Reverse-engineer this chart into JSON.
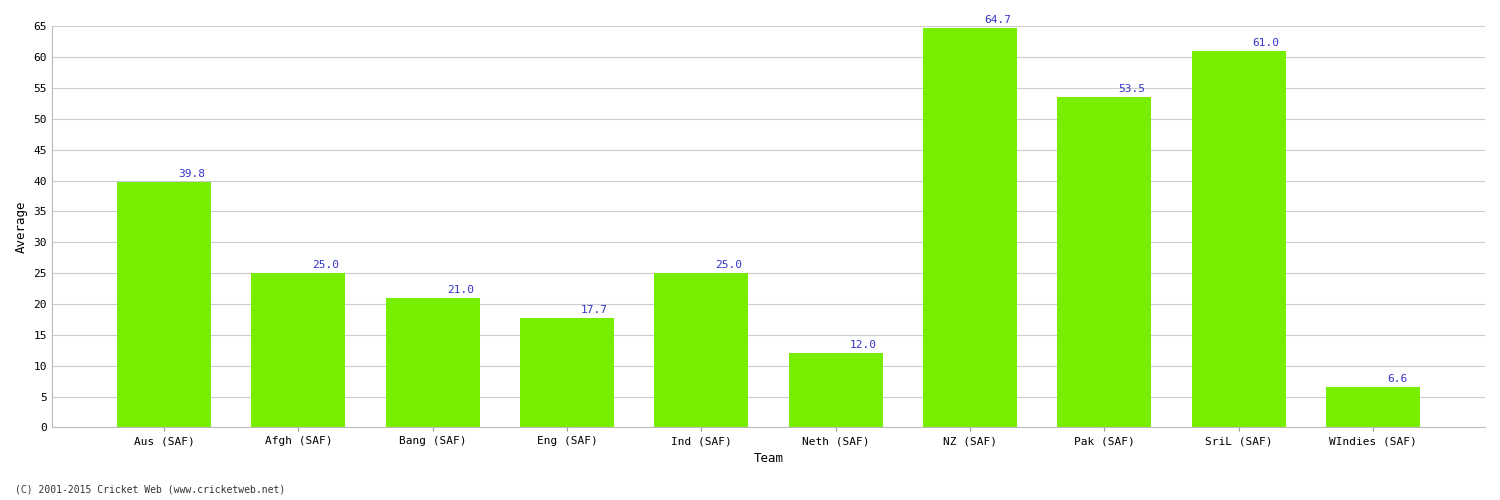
{
  "categories": [
    "Aus (SAF)",
    "Afgh (SAF)",
    "Bang (SAF)",
    "Eng (SAF)",
    "Ind (SAF)",
    "Neth (SAF)",
    "NZ (SAF)",
    "Pak (SAF)",
    "SriL (SAF)",
    "WIndies (SAF)"
  ],
  "values": [
    39.8,
    25.0,
    21.0,
    17.7,
    25.0,
    12.0,
    64.7,
    53.5,
    61.0,
    6.6
  ],
  "bar_color": "#77ee00",
  "bar_edge_color": "#77ee00",
  "label_color": "#3333cc",
  "ylabel": "Average",
  "xlabel": "Team",
  "ylim": [
    0,
    65
  ],
  "yticks": [
    0,
    5,
    10,
    15,
    20,
    25,
    30,
    35,
    40,
    45,
    50,
    55,
    60,
    65
  ],
  "grid_color": "#cccccc",
  "background_color": "#ffffff",
  "fig_width": 15.0,
  "fig_height": 5.0,
  "label_fontsize": 9,
  "tick_fontsize": 8,
  "annotation_fontsize": 8,
  "copyright_text": "(C) 2001-2015 Cricket Web (www.cricketweb.net)",
  "copyright_fontsize": 7,
  "bar_width": 0.7
}
